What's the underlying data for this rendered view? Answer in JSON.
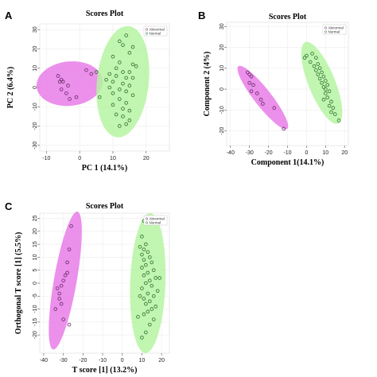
{
  "colors": {
    "abnormal": "#e87de8",
    "normal": "#b6f5a2",
    "point_stroke_abnormal": "#6b2a6b",
    "point_stroke_normal": "#2f6f2f"
  },
  "panels": [
    {
      "letter": "A",
      "chart_data": {
        "type": "scatter",
        "title": "Scores Plot",
        "xlabel": "PC 1 (14.1%)",
        "ylabel": "PC 2 (6.4%)",
        "xlim": [
          -12,
          27
        ],
        "ylim": [
          -33,
          33
        ],
        "xticks": [
          -10,
          0,
          10,
          20
        ],
        "yticks": [
          -30,
          -20,
          -10,
          0,
          10,
          20,
          30
        ],
        "grid": true,
        "legend": {
          "position": "top-right",
          "entries": [
            "Abnormal",
            "Normal"
          ]
        },
        "series": [
          {
            "name": "Abnormal",
            "points": [
              [
                -6.5,
                6
              ],
              [
                -5.5,
                4
              ],
              [
                -6,
                3
              ],
              [
                -5,
                3
              ],
              [
                -3.5,
                1
              ],
              [
                -5.5,
                -1
              ],
              [
                -4,
                -3
              ],
              [
                -3,
                -6
              ],
              [
                -1,
                -5
              ],
              [
                2,
                9
              ],
              [
                3.5,
                7
              ]
            ]
          },
          {
            "name": "Normal",
            "points": [
              [
                12,
                24
              ],
              [
                14,
                27
              ],
              [
                13,
                22
              ],
              [
                16,
                21
              ],
              [
                10,
                16
              ],
              [
                15,
                18
              ],
              [
                12,
                13
              ],
              [
                16,
                12
              ],
              [
                17,
                11
              ],
              [
                11,
                10
              ],
              [
                13,
                8
              ],
              [
                15,
                8
              ],
              [
                9,
                7
              ],
              [
                11,
                6
              ],
              [
                14,
                5
              ],
              [
                16,
                5
              ],
              [
                8,
                4
              ],
              [
                10,
                3
              ],
              [
                13,
                2
              ],
              [
                15,
                1
              ],
              [
                9,
                0
              ],
              [
                12,
                -1
              ],
              [
                10,
                -3
              ],
              [
                14,
                -2
              ],
              [
                16,
                -4
              ],
              [
                12,
                -6
              ],
              [
                14,
                -8
              ],
              [
                10,
                -9
              ],
              [
                13,
                -11
              ],
              [
                15,
                -12
              ],
              [
                11,
                -14
              ],
              [
                13,
                -15
              ],
              [
                15,
                -17
              ],
              [
                14,
                -19
              ],
              [
                12,
                -20
              ],
              [
                6,
                -5
              ],
              [
                5,
                8
              ]
            ]
          }
        ],
        "ellipses": [
          {
            "series": "Abnormal",
            "cx": -3,
            "cy": 2,
            "rx": 10,
            "ry": 11.5,
            "angle": -6
          },
          {
            "series": "Normal",
            "cx": 13,
            "cy": 3,
            "rx": 7.8,
            "ry": 29,
            "angle": 6
          }
        ]
      }
    },
    {
      "letter": "B",
      "chart_data": {
        "type": "scatter",
        "title": "Scores Plot",
        "xlabel": "Component 1(14.1%)",
        "ylabel": "Component 2 (4%)",
        "xlim": [
          -42,
          22
        ],
        "ylim": [
          -27,
          32
        ],
        "xticks": [
          -40,
          -30,
          -20,
          -10,
          0,
          10,
          20
        ],
        "yticks": [
          -20,
          -10,
          0,
          10,
          20,
          30
        ],
        "grid": true,
        "legend": {
          "position": "top-right",
          "entries": [
            "Abnormal",
            "Normal"
          ]
        },
        "series": [
          {
            "name": "Abnormal",
            "points": [
              [
                -31,
                8
              ],
              [
                -30,
                7
              ],
              [
                -29,
                6
              ],
              [
                -30,
                3
              ],
              [
                -28,
                2
              ],
              [
                -29,
                -1
              ],
              [
                -26,
                -2
              ],
              [
                -24,
                -5
              ],
              [
                -23,
                -7
              ],
              [
                -17,
                -9
              ],
              [
                -12,
                -19
              ]
            ]
          },
          {
            "name": "Normal",
            "points": [
              [
                -1,
                15
              ],
              [
                0,
                16
              ],
              [
                3,
                17
              ],
              [
                5,
                15
              ],
              [
                2,
                13
              ],
              [
                6,
                12
              ],
              [
                4,
                11
              ],
              [
                7,
                10
              ],
              [
                5,
                9
              ],
              [
                8,
                8
              ],
              [
                6,
                7
              ],
              [
                9,
                6
              ],
              [
                7,
                5
              ],
              [
                10,
                4
              ],
              [
                8,
                3
              ],
              [
                11,
                2
              ],
              [
                9,
                1
              ],
              [
                10,
                0
              ],
              [
                12,
                -1
              ],
              [
                10,
                -2
              ],
              [
                11,
                -4
              ],
              [
                9,
                -5
              ],
              [
                13,
                -6
              ],
              [
                12,
                -8
              ],
              [
                14,
                -9
              ],
              [
                13,
                -11
              ],
              [
                15,
                -12
              ],
              [
                17,
                -15
              ]
            ]
          }
        ],
        "ellipses": [
          {
            "series": "Abnormal",
            "cx": -23,
            "cy": -4,
            "rx": 4.5,
            "ry": 19,
            "angle": -38
          },
          {
            "series": "Normal",
            "cx": 8,
            "cy": 3,
            "rx": 7,
            "ry": 21,
            "angle": -22
          }
        ]
      }
    },
    {
      "letter": "C",
      "chart_data": {
        "type": "scatter",
        "title": "Scores Plot",
        "xlabel": "T score [1] (13.2%)",
        "ylabel": "Orthogonal T score [1] (5.5%)",
        "xlim": [
          -42,
          24
        ],
        "ylim": [
          -27,
          27
        ],
        "xticks": [
          -40,
          -30,
          -20,
          -10,
          0,
          10,
          20
        ],
        "yticks": [
          -20,
          -15,
          -10,
          -5,
          0,
          5,
          10,
          15,
          20,
          25
        ],
        "grid": true,
        "legend": {
          "position": "top-right",
          "entries": [
            "Abnormal",
            "Normal"
          ]
        },
        "series": [
          {
            "name": "Abnormal",
            "points": [
              [
                -26,
                22
              ],
              [
                -27,
                13
              ],
              [
                -28,
                8
              ],
              [
                -29,
                3
              ],
              [
                -30,
                1
              ],
              [
                -31,
                -1
              ],
              [
                -33,
                -2
              ],
              [
                -32,
                -4
              ],
              [
                -32,
                -6
              ],
              [
                -31,
                -8
              ],
              [
                -34,
                -10
              ],
              [
                -30,
                -14
              ],
              [
                -27,
                -16
              ],
              [
                -28,
                4
              ]
            ]
          },
          {
            "name": "Normal",
            "points": [
              [
                11,
                24
              ],
              [
                10,
                18
              ],
              [
                12,
                15
              ],
              [
                9,
                14
              ],
              [
                11,
                13
              ],
              [
                13,
                12
              ],
              [
                10,
                11
              ],
              [
                14,
                10
              ],
              [
                11,
                9
              ],
              [
                15,
                8
              ],
              [
                12,
                7
              ],
              [
                10,
                6
              ],
              [
                16,
                5
              ],
              [
                13,
                4
              ],
              [
                11,
                3
              ],
              [
                17,
                2
              ],
              [
                14,
                1
              ],
              [
                12,
                0
              ],
              [
                15,
                -1
              ],
              [
                10,
                -2
              ],
              [
                18,
                -3
              ],
              [
                13,
                -4
              ],
              [
                16,
                -5
              ],
              [
                11,
                -6
              ],
              [
                14,
                -7
              ],
              [
                12,
                -8
              ],
              [
                17,
                -9
              ],
              [
                15,
                -10
              ],
              [
                13,
                -11
              ],
              [
                11,
                -12
              ],
              [
                16,
                -14
              ],
              [
                14,
                -16
              ],
              [
                12,
                -19
              ],
              [
                10,
                -21
              ],
              [
                8,
                -13
              ],
              [
                9,
                -5
              ],
              [
                19,
                2
              ]
            ]
          }
        ],
        "ellipses": [
          {
            "series": "Abnormal",
            "cx": -29,
            "cy": 1,
            "rx": 5.8,
            "ry": 27,
            "angle": 10
          },
          {
            "series": "Normal",
            "cx": 13,
            "cy": 0,
            "rx": 9,
            "ry": 27,
            "angle": 2
          }
        ]
      }
    }
  ]
}
